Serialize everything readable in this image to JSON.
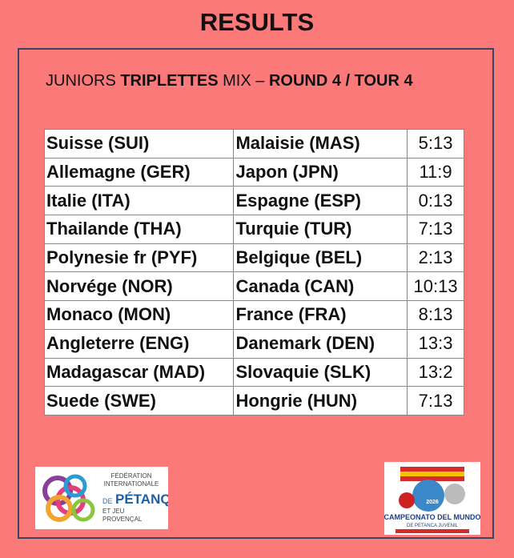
{
  "header": {
    "title": "RESULTS"
  },
  "subtitle": {
    "parts": [
      "JUNIORS ",
      "TRIPLETTES",
      " MIX – ",
      "ROUND 4 / TOUR 4"
    ]
  },
  "table": {
    "rows": [
      [
        "Suisse (SUI)",
        "Malaisie (MAS)",
        "5:13"
      ],
      [
        "Allemagne (GER)",
        "Japon (JPN)",
        "11:9"
      ],
      [
        "Italie (ITA)",
        "Espagne (ESP)",
        "0:13"
      ],
      [
        "Thailande (THA)",
        "Turquie (TUR)",
        "7:13"
      ],
      [
        "Polynesie fr (PYF)",
        "Belgique (BEL)",
        "2:13"
      ],
      [
        "Norvége (NOR)",
        "Canada (CAN)",
        "10:13"
      ],
      [
        "Monaco (MON)",
        "France (FRA)",
        "8:13"
      ],
      [
        "Angleterre (ENG)",
        "Danemark (DEN)",
        "13:3"
      ],
      [
        "Madagascar (MAD)",
        "Slovaquie (SLK)",
        "13:2"
      ],
      [
        "Suede (SWE)",
        "Hongrie (HUN)",
        "7:13"
      ]
    ]
  },
  "logos": {
    "left": {
      "lines": [
        "FÉDÉRATION",
        "INTERNATIONALE",
        "DE",
        "PÉTANQUE",
        "ET JEU",
        "PROVENÇAL"
      ]
    },
    "right": {
      "lines": [
        "CAMPEONATO DEL MUNDO",
        "DE PETANCA JUVENIL",
        "2026"
      ]
    }
  }
}
